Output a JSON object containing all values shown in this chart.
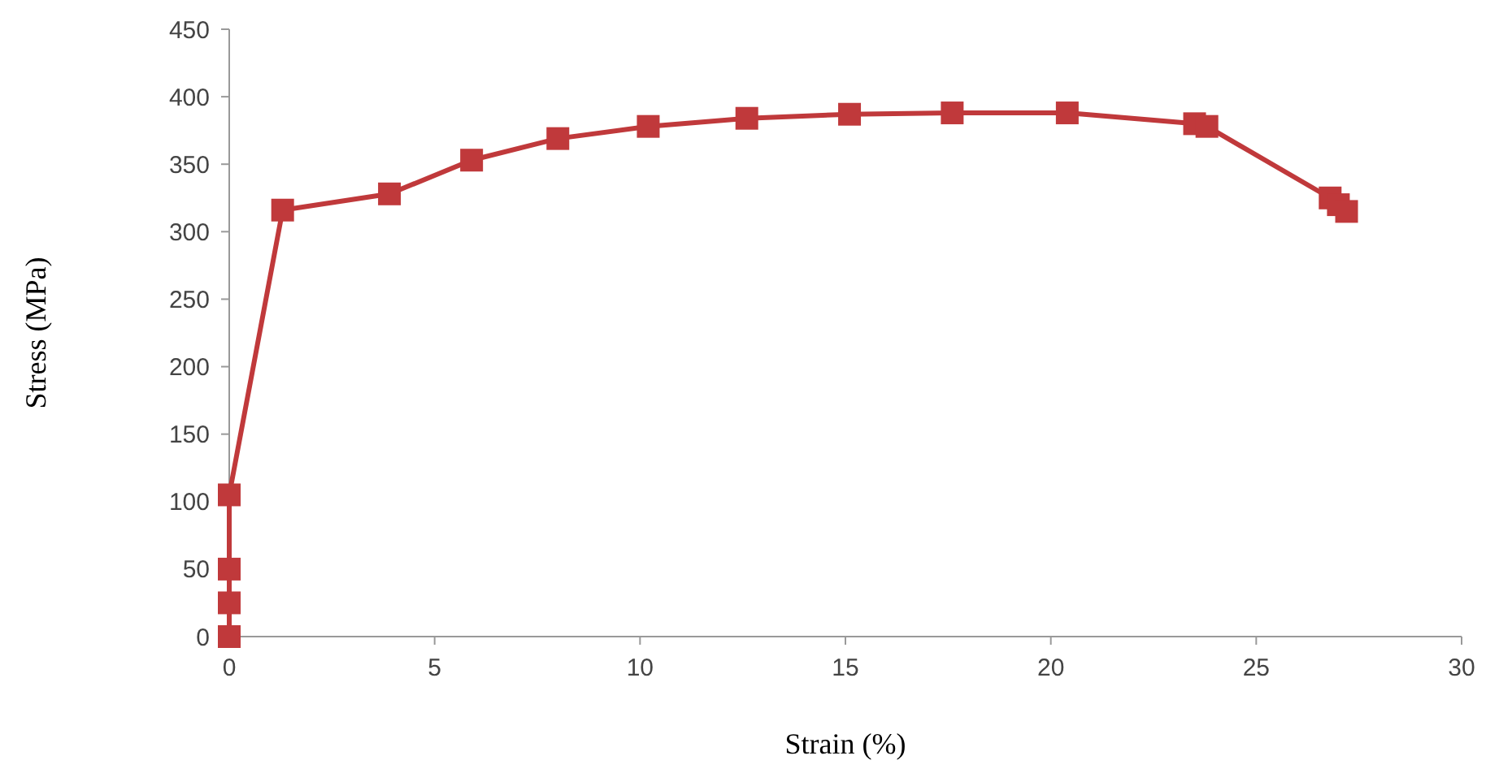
{
  "chart_data": {
    "type": "line",
    "xlabel": "Strain (%)",
    "ylabel": "Stress (MPa)",
    "marker": "square",
    "line_style": "solid",
    "grid": false,
    "xlim": [
      0,
      30
    ],
    "xticks": [
      0,
      5,
      10,
      15,
      20,
      25,
      30
    ],
    "ylim": [
      0,
      450
    ],
    "yticks": [
      0,
      50,
      100,
      150,
      200,
      250,
      300,
      350,
      400,
      450
    ],
    "series": [
      {
        "color": "#c0393b",
        "x": [
          0,
          0,
          0,
          0,
          1.3,
          3.9,
          5.9,
          8.0,
          10.2,
          12.6,
          15.1,
          17.6,
          20.4,
          23.5,
          23.8,
          26.8,
          27.0,
          27.2
        ],
        "values": [
          0,
          25,
          50,
          105,
          316,
          328,
          353,
          369,
          378,
          384,
          387,
          388,
          388,
          380,
          378,
          325,
          320,
          315
        ]
      }
    ]
  }
}
